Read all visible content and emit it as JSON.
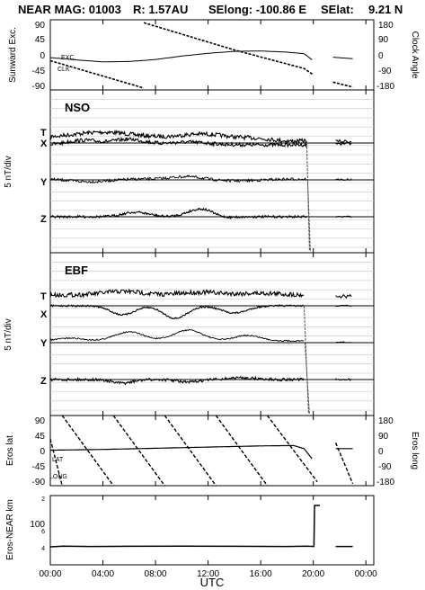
{
  "header": {
    "mission": "NEAR MAG: 01003",
    "radius": "R: 1.57AU",
    "selong": "SElong: -100.86 E",
    "selat": "SElat:",
    "selat_value": "9.21 N"
  },
  "chart_data": [
    {
      "type": "line",
      "id": "sunward",
      "ylabel": "Sunward Exc.",
      "ylabel_right": "Clock Angle",
      "ylim": [
        -90,
        90
      ],
      "ylim_right": [
        -180,
        180
      ],
      "yticks": [
        "90",
        "45",
        "0",
        "-45",
        "-90"
      ],
      "yticks_right": [
        "180",
        "90",
        "0",
        "-90",
        "-180"
      ],
      "legend": [
        "EXC.",
        "CLK"
      ],
      "series": [
        {
          "name": "EXC.",
          "axis": "left",
          "x": [
            0,
            2,
            4,
            6,
            8,
            10,
            12,
            14,
            16,
            18,
            19.3,
            20.0,
            21.5,
            23
          ],
          "y": [
            -7,
            -13,
            -18,
            -17,
            -12,
            -3,
            4,
            9,
            10,
            7,
            3,
            -15,
            -6,
            -10
          ]
        },
        {
          "name": "CLK",
          "axis": "right",
          "x": [
            0,
            7.1,
            7.11,
            14,
            19.3,
            20.0,
            21.5,
            23
          ],
          "y": [
            -30,
            -170,
            165,
            25,
            -70,
            -102,
            -140,
            -165
          ]
        }
      ]
    },
    {
      "type": "line",
      "id": "nso",
      "panel_label": "NSO",
      "ylabel": "5 nT/div",
      "components": [
        "T",
        "X",
        "Y",
        "Z"
      ],
      "data_end_hour": 19.5,
      "data_resume_hour": 21.7,
      "data_end_of_record_hour": 23.0
    },
    {
      "type": "line",
      "id": "ebf",
      "panel_label": "EBF",
      "ylabel": "5 nT/div",
      "components": [
        "T",
        "X",
        "Y",
        "Z"
      ],
      "data_end_hour": 19.3,
      "data_resume_hour": 21.7,
      "data_end_of_record_hour": 23.0
    },
    {
      "type": "line",
      "id": "eros",
      "ylabel": "Eros lat",
      "ylabel_right": "Eros long",
      "ylim": [
        -90,
        90
      ],
      "ylim_right": [
        -180,
        180
      ],
      "yticks": [
        "90",
        "45",
        "0",
        "-45",
        "-90"
      ],
      "yticks_right": [
        "180",
        "90",
        "0",
        "-90",
        "-180"
      ],
      "legend": [
        "LAT",
        "LONG"
      ],
      "series": [
        {
          "name": "LAT",
          "axis": "left",
          "x": [
            0,
            4,
            8,
            12,
            16,
            18.5,
            19.3,
            20.0,
            21.7,
            23
          ],
          "y": [
            1,
            3,
            6,
            9,
            12,
            13,
            5,
            -25,
            5,
            5
          ]
        },
        {
          "name": "LONG",
          "axis": "right",
          "peaks_hours": [
            0.9,
            4.8,
            8.7,
            12.6,
            16.5
          ],
          "peak_value": 180,
          "trough_value": -180,
          "gap_from": 20.3,
          "resume_hours": [
            21.7,
            23.0
          ],
          "resume_values": [
            40,
            -170
          ]
        }
      ]
    },
    {
      "type": "line",
      "id": "range",
      "ylabel": "Eros-NEAR km",
      "yticks": [
        "2",
        "100",
        "6",
        "4"
      ],
      "series": [
        {
          "name": "range",
          "x": [
            0,
            1,
            3,
            6,
            10,
            14,
            18,
            19.5,
            20.05,
            20.1,
            20.5,
            21.7,
            23
          ],
          "y": [
            4,
            4.2,
            4.1,
            4.15,
            4.2,
            4.15,
            4.1,
            4.2,
            4.1,
            118,
            118,
            4.1,
            4.1
          ]
        }
      ]
    }
  ],
  "xaxis": {
    "label": "UTC",
    "ticks": [
      "00:00",
      "04:00",
      "08:00",
      "12:00",
      "16:00",
      "20:00",
      "00:00"
    ],
    "tick_hours": [
      0,
      4,
      8,
      12,
      16,
      20,
      24
    ]
  }
}
